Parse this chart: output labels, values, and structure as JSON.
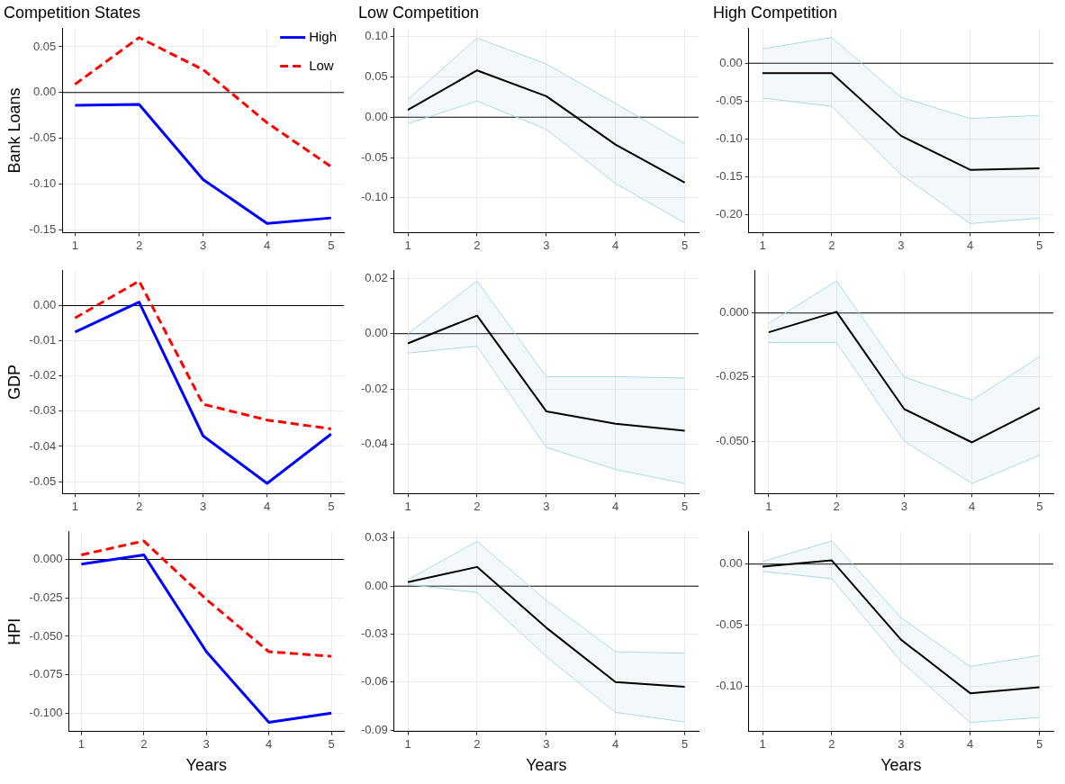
{
  "chart_data": [
    {
      "type": "line",
      "title": "Competition States",
      "ylabel": "Bank Loans",
      "x": [
        1,
        2,
        3,
        4,
        5
      ],
      "xlim": [
        0.8,
        5.2
      ],
      "xticks": [
        1,
        2,
        3,
        4,
        5
      ],
      "ylim": [
        -0.153,
        0.07
      ],
      "yticks": [
        {
          "value": -0.15,
          "label": "-0.15"
        },
        {
          "value": -0.1,
          "label": "-0.10"
        },
        {
          "value": -0.05,
          "label": "-0.05"
        },
        {
          "value": 0,
          "label": "0.00"
        },
        {
          "value": 0.05,
          "label": "0.05"
        }
      ],
      "grid": true,
      "marker": "none",
      "legend": "top right",
      "ref_lines": [
        {
          "axis": "y",
          "value": 0
        }
      ],
      "series": [
        {
          "name": "High",
          "color": "#0000ff",
          "line_style": "solid",
          "values": [
            -0.014,
            -0.013,
            -0.095,
            -0.143,
            -0.137
          ]
        },
        {
          "name": "Low",
          "color": "#ff0000",
          "line_style": "dashed",
          "values": [
            0.009,
            0.06,
            0.025,
            -0.033,
            -0.081
          ]
        }
      ]
    },
    {
      "type": "line",
      "title": "Low Competition",
      "x": [
        1,
        2,
        3,
        4,
        5
      ],
      "xlim": [
        0.8,
        5.2
      ],
      "xticks": [
        1,
        2,
        3,
        4,
        5
      ],
      "ylim": [
        -0.143,
        0.11
      ],
      "yticks": [
        {
          "value": -0.1,
          "label": "-0.10"
        },
        {
          "value": -0.05,
          "label": "-0.05"
        },
        {
          "value": 0,
          "label": "0.00"
        },
        {
          "value": 0.05,
          "label": "0.05"
        },
        {
          "value": 0.1,
          "label": "0.10"
        }
      ],
      "grid": true,
      "marker": "none",
      "ref_lines": [
        {
          "axis": "y",
          "value": 0
        }
      ],
      "series": [
        {
          "color": "#000000",
          "values": [
            0.009,
            0.058,
            0.026,
            -0.034,
            -0.081
          ],
          "lower": [
            -0.008,
            0.02,
            -0.015,
            -0.082,
            -0.131
          ],
          "upper": [
            0.022,
            0.098,
            0.066,
            0.017,
            -0.033
          ]
        },
        {
          "color": "#add8e6",
          "values": [
            -0.008,
            0.02,
            -0.015,
            -0.082,
            -0.131
          ]
        },
        {
          "color": "#add8e6",
          "values": [
            0.022,
            0.098,
            0.066,
            0.017,
            -0.033
          ]
        }
      ]
    },
    {
      "type": "line",
      "title": "High Competition",
      "x": [
        1,
        2,
        3,
        4,
        5
      ],
      "xlim": [
        0.8,
        5.2
      ],
      "xticks": [
        1,
        2,
        3,
        4,
        5
      ],
      "ylim": [
        -0.224,
        0.046
      ],
      "yticks": [
        {
          "value": -0.2,
          "label": "-0.20"
        },
        {
          "value": -0.15,
          "label": "-0.15"
        },
        {
          "value": -0.1,
          "label": "-0.10"
        },
        {
          "value": -0.05,
          "label": "-0.05"
        },
        {
          "value": 0,
          "label": "0.00"
        }
      ],
      "grid": true,
      "marker": "none",
      "ref_lines": [
        {
          "axis": "y",
          "value": 0
        }
      ],
      "series": [
        {
          "color": "#000000",
          "values": [
            -0.013,
            -0.013,
            -0.096,
            -0.141,
            -0.139
          ],
          "lower": [
            -0.046,
            -0.057,
            -0.147,
            -0.212,
            -0.205
          ],
          "upper": [
            0.019,
            0.034,
            -0.045,
            -0.073,
            -0.069
          ]
        },
        {
          "color": "#add8e6",
          "values": [
            -0.046,
            -0.057,
            -0.147,
            -0.212,
            -0.205
          ]
        },
        {
          "color": "#add8e6",
          "values": [
            0.019,
            0.034,
            -0.045,
            -0.073,
            -0.069
          ]
        }
      ]
    },
    {
      "type": "line",
      "ylabel": "GDP",
      "x": [
        1,
        2,
        3,
        4,
        5
      ],
      "xlim": [
        0.8,
        5.2
      ],
      "xticks": [
        1,
        2,
        3,
        4,
        5
      ],
      "ylim": [
        -0.0534,
        0.0099
      ],
      "yticks": [
        {
          "value": -0.05,
          "label": "-0.05"
        },
        {
          "value": -0.04,
          "label": "-0.04"
        },
        {
          "value": -0.03,
          "label": "-0.03"
        },
        {
          "value": -0.02,
          "label": "-0.02"
        },
        {
          "value": -0.01,
          "label": "-0.01"
        },
        {
          "value": 0,
          "label": "0.00"
        }
      ],
      "grid": true,
      "marker": "none",
      "ref_lines": [
        {
          "axis": "y",
          "value": 0
        }
      ],
      "series": [
        {
          "color": "#0000ff",
          "line_style": "solid",
          "values": [
            -0.0075,
            0.001,
            -0.037,
            -0.0505,
            -0.0365
          ]
        },
        {
          "color": "#ff0000",
          "line_style": "dashed",
          "values": [
            -0.0035,
            0.007,
            -0.028,
            -0.0325,
            -0.035
          ]
        }
      ]
    },
    {
      "type": "line",
      "x": [
        1,
        2,
        3,
        4,
        5
      ],
      "xlim": [
        0.8,
        5.2
      ],
      "xticks": [
        1,
        2,
        3,
        4,
        5
      ],
      "ylim": [
        -0.0577,
        0.0227
      ],
      "yticks": [
        {
          "value": -0.04,
          "label": "-0.04"
        },
        {
          "value": -0.02,
          "label": "-0.02"
        },
        {
          "value": 0,
          "label": "0.00"
        },
        {
          "value": 0.02,
          "label": "0.02"
        }
      ],
      "grid": true,
      "marker": "none",
      "ref_lines": [
        {
          "axis": "y",
          "value": 0
        }
      ],
      "series": [
        {
          "color": "#000000",
          "values": [
            -0.0035,
            0.0065,
            -0.028,
            -0.0325,
            -0.035
          ],
          "lower": [
            -0.007,
            -0.0045,
            -0.041,
            -0.049,
            -0.054
          ],
          "upper": [
            0.0,
            0.019,
            -0.0155,
            -0.0155,
            -0.016
          ]
        },
        {
          "color": "#add8e6",
          "values": [
            -0.007,
            -0.0045,
            -0.041,
            -0.049,
            -0.054
          ]
        },
        {
          "color": "#add8e6",
          "values": [
            0.0,
            0.019,
            -0.0155,
            -0.0155,
            -0.016
          ]
        }
      ]
    },
    {
      "type": "line",
      "x": [
        1,
        2,
        3,
        4,
        5
      ],
      "xlim": [
        0.8,
        5.2
      ],
      "xticks": [
        1,
        2,
        3,
        4,
        5
      ],
      "ylim": [
        -0.0705,
        0.0165
      ],
      "yticks": [
        {
          "value": -0.05,
          "label": "-0.050"
        },
        {
          "value": -0.025,
          "label": "-0.025"
        },
        {
          "value": 0,
          "label": "0.000"
        }
      ],
      "grid": true,
      "marker": "none",
      "ref_lines": [
        {
          "axis": "y",
          "value": 0
        }
      ],
      "series": [
        {
          "color": "#000000",
          "values": [
            -0.0075,
            0.0005,
            -0.0375,
            -0.0505,
            -0.037
          ],
          "lower": [
            -0.0115,
            -0.0115,
            -0.05,
            -0.0665,
            -0.0555
          ],
          "upper": [
            -0.004,
            0.0125,
            -0.025,
            -0.034,
            -0.017
          ]
        },
        {
          "color": "#add8e6",
          "values": [
            -0.0115,
            -0.0115,
            -0.05,
            -0.0665,
            -0.0555
          ]
        },
        {
          "color": "#add8e6",
          "values": [
            -0.004,
            0.0125,
            -0.025,
            -0.034,
            -0.017
          ]
        }
      ]
    },
    {
      "type": "line",
      "ylabel": "HPI",
      "xlabel": "Years",
      "x": [
        1,
        2,
        3,
        4,
        5
      ],
      "xlim": [
        0.8,
        5.2
      ],
      "xticks": [
        1,
        2,
        3,
        4,
        5
      ],
      "ylim": [
        -0.112,
        0.018
      ],
      "yticks": [
        {
          "value": -0.1,
          "label": "-0.100"
        },
        {
          "value": -0.075,
          "label": "-0.075"
        },
        {
          "value": -0.05,
          "label": "-0.050"
        },
        {
          "value": -0.025,
          "label": "-0.025"
        },
        {
          "value": 0,
          "label": "0.000"
        }
      ],
      "grid": true,
      "marker": "none",
      "ref_lines": [
        {
          "axis": "y",
          "value": 0
        }
      ],
      "series": [
        {
          "color": "#0000ff",
          "line_style": "solid",
          "values": [
            -0.003,
            0.003,
            -0.06,
            -0.106,
            -0.1
          ]
        },
        {
          "color": "#ff0000",
          "line_style": "dashed",
          "values": [
            0.003,
            0.012,
            -0.026,
            -0.06,
            -0.063
          ]
        }
      ]
    },
    {
      "type": "line",
      "xlabel": "Years",
      "x": [
        1,
        2,
        3,
        4,
        5
      ],
      "xlim": [
        0.8,
        5.2
      ],
      "xticks": [
        1,
        2,
        3,
        4,
        5
      ],
      "ylim": [
        -0.091,
        0.034
      ],
      "yticks": [
        {
          "value": -0.09,
          "label": "-0.09"
        },
        {
          "value": -0.06,
          "label": "-0.06"
        },
        {
          "value": -0.03,
          "label": "-0.03"
        },
        {
          "value": 0,
          "label": "0.00"
        },
        {
          "value": 0.03,
          "label": "0.03"
        }
      ],
      "grid": true,
      "marker": "none",
      "ref_lines": [
        {
          "axis": "y",
          "value": 0
        }
      ],
      "series": [
        {
          "color": "#000000",
          "values": [
            0.0025,
            0.012,
            -0.026,
            -0.06,
            -0.063
          ],
          "lower": [
            0.001,
            -0.004,
            -0.044,
            -0.079,
            -0.085
          ],
          "upper": [
            0.004,
            0.028,
            -0.009,
            -0.041,
            -0.042
          ]
        },
        {
          "color": "#add8e6",
          "values": [
            0.001,
            -0.004,
            -0.044,
            -0.079,
            -0.085
          ]
        },
        {
          "color": "#add8e6",
          "values": [
            0.004,
            0.028,
            -0.009,
            -0.041,
            -0.042
          ]
        }
      ]
    },
    {
      "type": "line",
      "xlabel": "Years",
      "x": [
        1,
        2,
        3,
        4,
        5
      ],
      "xlim": [
        0.8,
        5.2
      ],
      "xticks": [
        1,
        2,
        3,
        4,
        5
      ],
      "ylim": [
        -0.1375,
        0.0265
      ],
      "yticks": [
        {
          "value": -0.1,
          "label": "-0.10"
        },
        {
          "value": -0.05,
          "label": "-0.05"
        },
        {
          "value": 0,
          "label": "0.00"
        }
      ],
      "grid": true,
      "marker": "none",
      "ref_lines": [
        {
          "axis": "y",
          "value": 0
        }
      ],
      "series": [
        {
          "color": "#000000",
          "values": [
            -0.002,
            0.003,
            -0.062,
            -0.106,
            -0.101
          ],
          "lower": [
            -0.006,
            -0.012,
            -0.08,
            -0.13,
            -0.126
          ],
          "upper": [
            0.002,
            0.019,
            -0.044,
            -0.084,
            -0.075
          ]
        },
        {
          "color": "#add8e6",
          "values": [
            -0.006,
            -0.012,
            -0.08,
            -0.13,
            -0.126
          ]
        },
        {
          "color": "#add8e6",
          "values": [
            0.002,
            0.019,
            -0.044,
            -0.084,
            -0.075
          ]
        }
      ]
    }
  ]
}
